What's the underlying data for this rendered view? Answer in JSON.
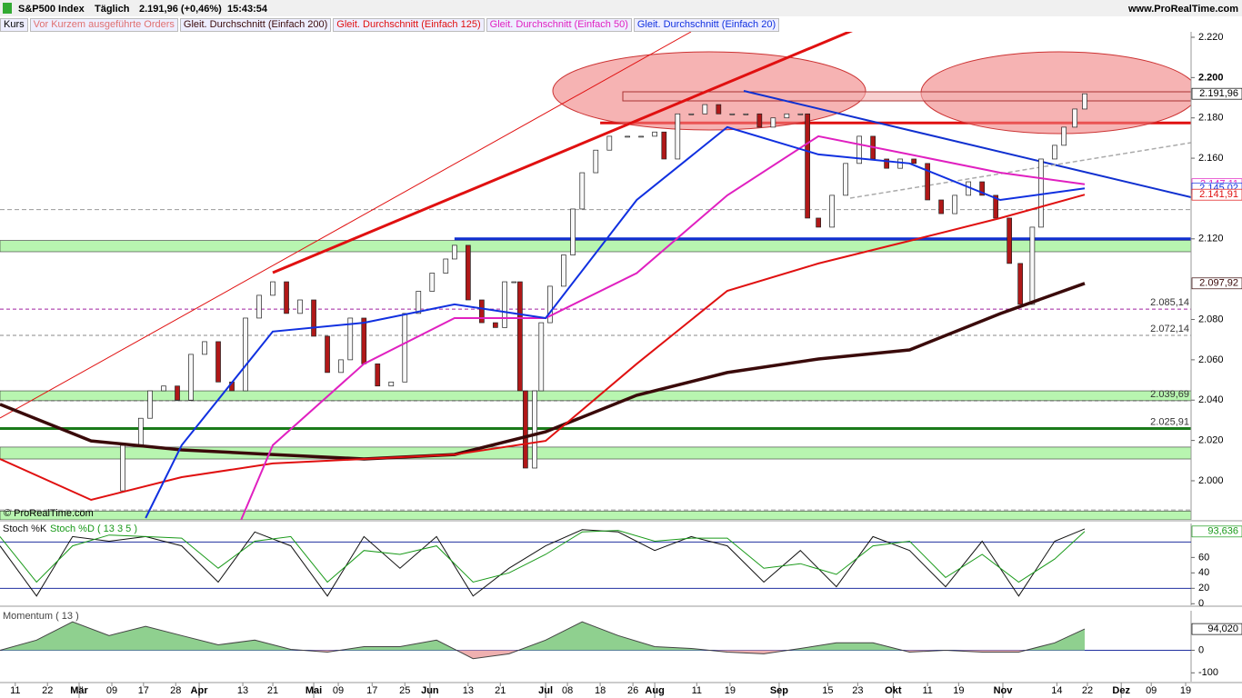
{
  "header": {
    "instrument": "S&P500 Index",
    "period": "Täglich",
    "quote": "2.191,96 (+0,46%)",
    "time": "15:43:54",
    "site": "www.ProRealTime.com",
    "copyright": "© ProRealTime.com"
  },
  "tabs": [
    "Kurs",
    "Vor Kurzem ausgeführte Orders"
  ],
  "x_axis": {
    "xlim": [
      0,
      218.3
    ],
    "xticks": [
      {
        "value": 2.8,
        "label": "11"
      },
      {
        "value": 8.7,
        "label": "22"
      },
      {
        "value": 14.5,
        "label": "Mär",
        "month": true
      },
      {
        "value": 20.5,
        "label": "09"
      },
      {
        "value": 26.3,
        "label": "17"
      },
      {
        "value": 32.2,
        "label": "28"
      },
      {
        "value": 36.5,
        "label": "Apr",
        "month": true
      },
      {
        "value": 44.5,
        "label": "13"
      },
      {
        "value": 50,
        "label": "21"
      },
      {
        "value": 57.5,
        "label": "Mai",
        "month": true
      },
      {
        "value": 62,
        "label": "09"
      },
      {
        "value": 68.2,
        "label": "17"
      },
      {
        "value": 74.2,
        "label": "25"
      },
      {
        "value": 78.8,
        "label": "Jun",
        "month": true
      },
      {
        "value": 85.8,
        "label": "13"
      },
      {
        "value": 91.7,
        "label": "21"
      },
      {
        "value": 100,
        "label": "Jul",
        "month": true
      },
      {
        "value": 104,
        "label": "08"
      },
      {
        "value": 110,
        "label": "18"
      },
      {
        "value": 116,
        "label": "26"
      },
      {
        "value": 120,
        "label": "Aug",
        "month": true
      },
      {
        "value": 127.7,
        "label": "11"
      },
      {
        "value": 133.8,
        "label": "19"
      },
      {
        "value": 142.8,
        "label": "Sep",
        "month": true
      },
      {
        "value": 151.7,
        "label": "15"
      },
      {
        "value": 157.2,
        "label": "23"
      },
      {
        "value": 163.7,
        "label": "Okt",
        "month": true
      },
      {
        "value": 170,
        "label": "11"
      },
      {
        "value": 175.7,
        "label": "19"
      },
      {
        "value": 183.8,
        "label": "Nov",
        "month": true
      },
      {
        "value": 193.7,
        "label": "14"
      },
      {
        "value": 199.3,
        "label": "22"
      },
      {
        "value": 205.5,
        "label": "Dez",
        "month": true
      },
      {
        "value": 211,
        "label": "09"
      },
      {
        "value": 217.3,
        "label": "19"
      }
    ]
  },
  "chart_data": [
    {
      "type": "candlestick",
      "ylim": [
        1980.6,
        2222.7
      ],
      "yticks": [
        {
          "value": 2000,
          "label": "2.000"
        },
        {
          "value": 2020,
          "label": "2.020"
        },
        {
          "value": 2040,
          "label": "2.040"
        },
        {
          "value": 2060,
          "label": "2.060"
        },
        {
          "value": 2080,
          "label": "2.080"
        },
        {
          "value": 2120,
          "label": "2.120"
        },
        {
          "value": 2160,
          "label": "2.160"
        },
        {
          "value": 2180,
          "label": "2.180"
        },
        {
          "value": 2200,
          "label": "2.200",
          "bold": true
        },
        {
          "value": 2220,
          "label": "2.220"
        }
      ],
      "zones": [
        [
          2113.6,
          2119.2
        ],
        [
          2039.7,
          2044.6
        ],
        [
          2010.8,
          2016.7
        ],
        [
          1980.6,
          1985
        ]
      ],
      "zone_color": "#b8f5b0",
      "lines": [
        {
          "value": 2134.5,
          "color": "#999",
          "dash": true,
          "width": 1,
          "from": 0
        },
        {
          "value": 1985.5,
          "color": "#999",
          "dash": true,
          "width": 1,
          "from": 0
        },
        {
          "value": 2177.5,
          "color": "#e01010",
          "width": 3,
          "from": 110
        },
        {
          "value": 2120,
          "color": "#1030d0",
          "width": 3,
          "from": 83.3
        }
      ],
      "levels": [
        {
          "value": 2085.14,
          "label": "2.085,14",
          "color": "#a020a0",
          "dash": true
        },
        {
          "value": 2072.14,
          "label": "2.072,14",
          "color": "#888",
          "dash": true
        },
        {
          "value": 2039.69,
          "label": "2.039,69",
          "color": "#555",
          "dash": true
        },
        {
          "value": 2025.91,
          "label": "2.025,91",
          "color": "#1a7a1a",
          "width": 3
        }
      ],
      "series": [
        {
          "name": "Kurs",
          "style": "candle",
          "up_color": "#f8f8f8",
          "down_color": "#b01818",
          "x": [
            17.5,
            22.5,
            25.8,
            27.5,
            30,
            32.5,
            35,
            37.5,
            40,
            42.5,
            45,
            47.5,
            50,
            52.5,
            55,
            57.5,
            60,
            62.5,
            64.2,
            66.7,
            69.2,
            71.7,
            74.2,
            76.7,
            79.2,
            81.7,
            83.3,
            85.8,
            88.3,
            90.8,
            92.5,
            94.2,
            95.3,
            96.3,
            98,
            99.2,
            100.8,
            103.3,
            105,
            106.7,
            109.2,
            111.7,
            115,
            117.5,
            120,
            121.7,
            124.2,
            126.7,
            129.2,
            131.7,
            134.2,
            136.7,
            139.2,
            141.7,
            144.2,
            146.7,
            148,
            150,
            152.5,
            155,
            157.5,
            160,
            162.5,
            165,
            167.5,
            170,
            172.5,
            175,
            177.5,
            180,
            182.5,
            185,
            187,
            189.2,
            190.8,
            193.3,
            195,
            197,
            198.8
          ],
          "values": [
            1995,
            2017.6,
            2031,
            2044.6,
            2047,
            2040,
            2062.7,
            2069,
            2049,
            2044.6,
            2080.7,
            2092,
            2098.7,
            2083,
            2089.7,
            2071.7,
            2053.7,
            2060,
            2080.7,
            2058,
            2047,
            2049,
            2083,
            2094,
            2103,
            2110,
            2116.8,
            2089.7,
            2078.4,
            2076,
            2098.7,
            2098.7,
            2044.6,
            2006.3,
            2044.6,
            2078.4,
            2096.5,
            2112,
            2134.8,
            2152.8,
            2164,
            2170.9,
            2170.9,
            2170.9,
            2173,
            2159.6,
            2182,
            2182,
            2186.6,
            2182,
            2182,
            2182,
            2175.4,
            2180,
            2182,
            2182,
            2130.3,
            2125.8,
            2141.6,
            2157.4,
            2170.9,
            2159.6,
            2155,
            2159.6,
            2157.4,
            2139.3,
            2132.5,
            2141.6,
            2148.3,
            2141.6,
            2130.3,
            2107.8,
            2087.5,
            2125.8,
            2159.6,
            2166.4,
            2175.4,
            2184.4,
            2191.96
          ]
        },
        {
          "name": "Gleit. Durchschnitt (Einfach 200)",
          "color": "#3a0a0a",
          "width": 3.5,
          "x": [
            0,
            16.7,
            33.3,
            50,
            66.7,
            83.3,
            100,
            116.7,
            133.3,
            150,
            166.7,
            183.3,
            198.8
          ],
          "values": [
            2037.9,
            2019.8,
            2015.3,
            2013,
            2010.8,
            2013,
            2024.3,
            2042.4,
            2053.7,
            2060.4,
            2064.9,
            2082.9,
            2097.92
          ]
        },
        {
          "name": "Gleit. Durchschnitt (Einfach 125)",
          "color": "#e01010",
          "width": 2,
          "x": [
            0,
            16.7,
            33.3,
            50,
            66.7,
            83.3,
            100,
            116.7,
            133.3,
            150,
            166.7,
            183.3,
            198.8
          ],
          "values": [
            2010.8,
            1990.5,
            2001.8,
            2008.6,
            2010.8,
            2013,
            2019.8,
            2058,
            2094.2,
            2107.8,
            2119,
            2130.3,
            2141.91
          ]
        },
        {
          "name": "Gleit. Durchschnitt (Einfach 50)",
          "color": "#e020c0",
          "width": 2,
          "x": [
            44.2,
            50,
            66.7,
            83.3,
            100,
            116.7,
            133.3,
            150,
            166.7,
            183.3,
            198.8
          ],
          "values": [
            1980.6,
            2017.6,
            2058,
            2080.7,
            2080.7,
            2103,
            2141.6,
            2170.9,
            2161.9,
            2152.8,
            2147.11
          ]
        },
        {
          "name": "Gleit. Durchschnitt (Einfach 20)",
          "color": "#1030e0",
          "width": 2,
          "x": [
            26.7,
            33.3,
            50,
            66.7,
            83.3,
            100,
            116.7,
            133.3,
            150,
            166.7,
            183.3,
            198.8
          ],
          "values": [
            1981.5,
            2017.6,
            2074,
            2078.4,
            2087.5,
            2080.7,
            2139.3,
            2175.4,
            2161.9,
            2157.4,
            2139.3,
            2145.02
          ]
        }
      ],
      "price_labels": [
        {
          "value": 2191.96,
          "label": "2.191,96",
          "color": "#000"
        },
        {
          "value": 2147.11,
          "label": "2.147,11",
          "color": "#e020c0"
        },
        {
          "value": 2145.02,
          "label": "2.145,02",
          "color": "#1030e0"
        },
        {
          "value": 2141.91,
          "label": "2.141,91",
          "color": "#e01010"
        },
        {
          "value": 2097.92,
          "label": "2.097,92",
          "color": "#3a0a0a"
        }
      ]
    },
    {
      "type": "line",
      "ylim": [
        -2,
        104
      ],
      "yticks": [
        0,
        20,
        40,
        60
      ],
      "ref_lines": [
        20,
        80
      ],
      "ref_color": "#2030a0",
      "series": [
        {
          "name": "Stoch %K",
          "color": "#111",
          "width": 1,
          "x": [
            0,
            6.7,
            13.3,
            20,
            26.7,
            33.3,
            40,
            46.7,
            53.3,
            60,
            66.7,
            73.3,
            80,
            86.7,
            93.3,
            100,
            106.7,
            113.3,
            120,
            126.7,
            133.3,
            140,
            146.7,
            153.3,
            160,
            166.7,
            173.3,
            180,
            186.7,
            193.3,
            198.8
          ],
          "values": [
            75,
            10,
            87,
            81,
            87,
            75,
            28,
            93,
            75,
            10,
            87,
            46,
            87,
            10,
            46,
            75,
            96,
            93,
            69,
            87,
            75,
            28,
            69,
            22,
            87,
            69,
            22,
            81,
            10,
            81,
            97
          ]
        },
        {
          "name": "Stoch %D ( 13 3 5 )",
          "color": "#1a9a1a",
          "width": 1,
          "x": [
            0,
            6.7,
            13.3,
            20,
            26.7,
            33.3,
            40,
            46.7,
            53.3,
            60,
            66.7,
            73.3,
            80,
            86.7,
            93.3,
            100,
            106.7,
            113.3,
            120,
            126.7,
            133.3,
            140,
            146.7,
            153.3,
            160,
            166.7,
            173.3,
            180,
            186.7,
            193.3,
            198.8
          ],
          "values": [
            87,
            28,
            75,
            89,
            87,
            85,
            46,
            81,
            87,
            28,
            69,
            64,
            75,
            28,
            40,
            64,
            93,
            95,
            81,
            85,
            85,
            46,
            52,
            38,
            75,
            81,
            34,
            64,
            28,
            58,
            93.636
          ]
        }
      ],
      "price_labels": [
        {
          "value": 93.636,
          "label": "93,636",
          "color": "#1a9a1a"
        }
      ]
    },
    {
      "type": "area",
      "ylim": [
        -139,
        175
      ],
      "yticks": [
        {
          "value": -100,
          "label": "-100"
        },
        0
      ],
      "ref_lines": [
        0
      ],
      "ref_color": "#2030a0",
      "fill_pos": "#8fd08f",
      "fill_neg": "#efb0b0",
      "series": [
        {
          "name": "Momentum ( 13 )",
          "color": "#444",
          "width": 1,
          "x": [
            0,
            6.7,
            13.3,
            20,
            26.7,
            33.3,
            40,
            46.7,
            53.3,
            60,
            66.7,
            73.3,
            80,
            86.7,
            93.3,
            100,
            106.7,
            113.3,
            120,
            126.7,
            133.3,
            140,
            146.7,
            153.3,
            160,
            166.7,
            173.3,
            180,
            186.7,
            193.3,
            198.8
          ],
          "values": [
            0,
            45,
            126,
            65,
            106,
            65,
            24,
            45,
            4,
            -8,
            16,
            16,
            45,
            -37,
            -16,
            45,
            126,
            65,
            16,
            8,
            -8,
            -16,
            8,
            33,
            33,
            -8,
            0,
            -8,
            -8,
            33,
            94.02
          ]
        }
      ],
      "price_labels": [
        {
          "value": 94.02,
          "label": "94,020",
          "color": "#000"
        }
      ]
    }
  ]
}
